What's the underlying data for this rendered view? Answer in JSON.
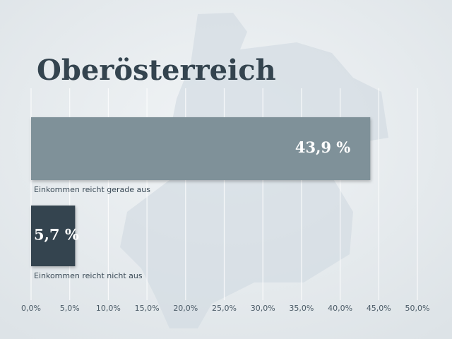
{
  "chart_data": {
    "type": "hbar",
    "title": "Oberösterreich",
    "categories": [
      "Einkommen reicht gerade aus",
      "Einkommen reicht nicht aus"
    ],
    "values": [
      43.9,
      5.7
    ],
    "value_labels": [
      "43,9 %",
      "5,7 %"
    ],
    "colors": [
      "#7f9199",
      "#34444f"
    ],
    "xlim": [
      0,
      50
    ],
    "xticks": [
      {
        "value": 0,
        "label": "0,0%"
      },
      {
        "value": 5,
        "label": "5,0%"
      },
      {
        "value": 10,
        "label": "10,0%"
      },
      {
        "value": 15,
        "label": "15,0%"
      },
      {
        "value": 20,
        "label": "20,0%"
      },
      {
        "value": 25,
        "label": "25,0%"
      },
      {
        "value": 30,
        "label": "30,0%"
      },
      {
        "value": 35,
        "label": "35,0%"
      },
      {
        "value": 40,
        "label": "40,0%"
      },
      {
        "value": 45,
        "label": "45,0%"
      },
      {
        "value": 50,
        "label": "50,0%"
      }
    ],
    "grid": true
  }
}
